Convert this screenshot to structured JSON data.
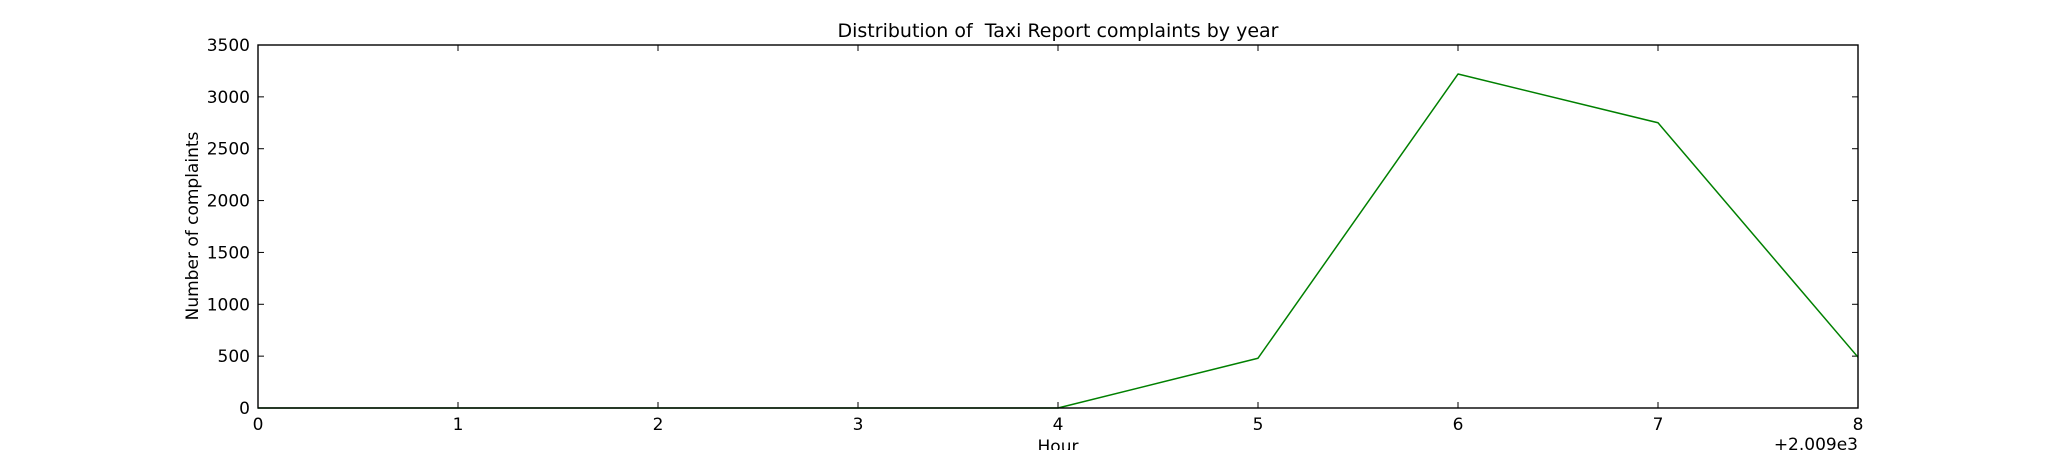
{
  "chart_data": {
    "type": "line",
    "title": "Distribution of  Taxi Report complaints by year",
    "xlabel": "Hour",
    "ylabel": "Number of complaints",
    "x_offset_label": "+2.009e3",
    "x_ticks": [
      "0",
      "1",
      "2",
      "3",
      "4",
      "5",
      "6",
      "7",
      "8"
    ],
    "y_ticks": [
      "0",
      "500",
      "1000",
      "1500",
      "2000",
      "2500",
      "3000",
      "3500"
    ],
    "xlim": [
      0,
      8
    ],
    "ylim": [
      0,
      3500
    ],
    "grid": false,
    "series": [
      {
        "color": "#008000",
        "x": [
          0,
          1,
          2,
          3,
          4,
          5,
          6,
          7,
          8
        ],
        "y": [
          0,
          0,
          0,
          0,
          0,
          480,
          3220,
          2750,
          490
        ]
      }
    ]
  }
}
